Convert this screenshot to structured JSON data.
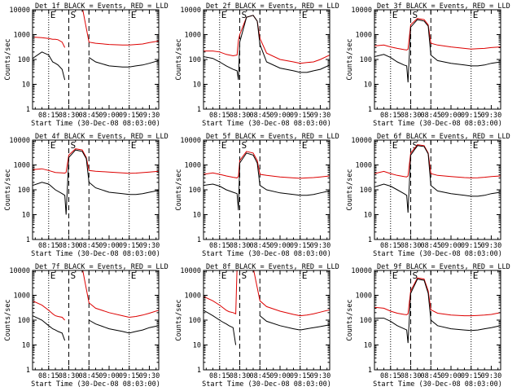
{
  "figure": {
    "xlabel": "Start Time (30-Dec-08 08:03:00)",
    "ylabel": "Counts/sec",
    "x_tick_labels": [
      "08:15",
      "08:30",
      "08:45",
      "09:00",
      "09:15",
      "09:30"
    ],
    "y_tick_labels": [
      "1",
      "10",
      "100",
      "1000",
      "10000"
    ],
    "marker_labels": [
      "E",
      "S",
      "E"
    ],
    "colors": {
      "events": "#000000",
      "lld": "#dd0000",
      "axes": "#000000"
    }
  },
  "chart_data": [
    {
      "type": "line",
      "title": "Det 1f BLACK = Events, RED = LLD",
      "x": [
        "08:03",
        "08:10",
        "08:15",
        "08:18",
        "08:20",
        "08:22",
        "08:25",
        "08:27",
        "08:30",
        "08:31",
        "08:33",
        "08:40",
        "08:45",
        "08:50",
        "09:00",
        "09:10",
        "09:15",
        "09:20",
        "09:25",
        "09:30",
        "09:37"
      ],
      "series": [
        {
          "color": "#dd0000",
          "values": [
            800,
            750,
            700,
            650,
            650,
            620,
            500,
            300,
            null,
            13000,
            13000,
            13000,
            500,
            450,
            400,
            380,
            380,
            400,
            420,
            480,
            550
          ]
        },
        {
          "color": "#000000",
          "values": [
            110,
            200,
            150,
            80,
            70,
            60,
            40,
            15,
            null,
            null,
            null,
            null,
            120,
            80,
            55,
            50,
            50,
            55,
            60,
            70,
            90
          ]
        }
      ],
      "xlim": [
        "08:03",
        "09:37"
      ],
      "ylim": [
        1,
        10000
      ],
      "yscale": "log",
      "dotted_lines": [
        "08:15",
        "09:15"
      ],
      "dashed_lines": [
        "08:30",
        "08:45"
      ],
      "grid": false
    },
    {
      "type": "line",
      "title": "Det 2f BLACK = Events, RED = LLD",
      "x": [
        "08:03",
        "08:10",
        "08:15",
        "08:20",
        "08:25",
        "08:28",
        "08:29",
        "08:30",
        "08:35",
        "08:40",
        "08:43",
        "08:45",
        "08:50",
        "09:00",
        "09:10",
        "09:15",
        "09:20",
        "09:25",
        "09:30",
        "09:37"
      ],
      "series": [
        {
          "color": "#dd0000",
          "values": [
            220,
            220,
            200,
            160,
            140,
            150,
            600,
            1000,
            5000,
            6000,
            3500,
            700,
            180,
            100,
            80,
            70,
            75,
            80,
            100,
            150
          ]
        },
        {
          "color": "#000000",
          "values": [
            130,
            110,
            80,
            55,
            40,
            35,
            15,
            500,
            5000,
            6000,
            3500,
            400,
            80,
            45,
            35,
            30,
            30,
            35,
            40,
            60
          ]
        }
      ],
      "xlim": [
        "08:03",
        "09:37"
      ],
      "ylim": [
        1,
        10000
      ],
      "yscale": "log",
      "dotted_lines": [
        "08:15",
        "09:15"
      ],
      "dashed_lines": [
        "08:30",
        "08:45"
      ],
      "grid": false
    },
    {
      "type": "line",
      "title": "Det 3f BLACK = Events, RED = LLD",
      "x": [
        "08:03",
        "08:10",
        "08:15",
        "08:20",
        "08:25",
        "08:27",
        "08:28",
        "08:30",
        "08:35",
        "08:40",
        "08:43",
        "08:45",
        "08:50",
        "09:00",
        "09:10",
        "09:15",
        "09:20",
        "09:25",
        "09:30",
        "09:37"
      ],
      "series": [
        {
          "color": "#dd0000",
          "values": [
            350,
            380,
            320,
            280,
            250,
            240,
            260,
            2500,
            4500,
            4000,
            2500,
            450,
            380,
            320,
            280,
            260,
            270,
            280,
            300,
            320
          ]
        },
        {
          "color": "#000000",
          "values": [
            130,
            160,
            120,
            80,
            60,
            55,
            12,
            2000,
            4000,
            3500,
            2200,
            150,
            90,
            70,
            60,
            55,
            55,
            60,
            70,
            80
          ]
        }
      ],
      "xlim": [
        "08:03",
        "09:37"
      ],
      "ylim": [
        1,
        10000
      ],
      "yscale": "log",
      "dotted_lines": [
        "08:15",
        "09:15"
      ],
      "dashed_lines": [
        "08:30",
        "08:45"
      ],
      "grid": false
    },
    {
      "type": "line",
      "title": "Det 4f BLACK = Events, RED = LLD",
      "x": [
        "08:03",
        "08:10",
        "08:15",
        "08:20",
        "08:25",
        "08:27",
        "08:28",
        "08:30",
        "08:35",
        "08:40",
        "08:43",
        "08:45",
        "08:50",
        "09:00",
        "09:10",
        "09:15",
        "09:20",
        "09:25",
        "09:30",
        "09:37"
      ],
      "series": [
        {
          "color": "#dd0000",
          "values": [
            650,
            700,
            600,
            500,
            480,
            470,
            500,
            2500,
            4500,
            4000,
            2000,
            600,
            560,
            520,
            480,
            460,
            470,
            490,
            520,
            560
          ]
        },
        {
          "color": "#000000",
          "values": [
            150,
            200,
            170,
            100,
            70,
            60,
            10,
            2000,
            4000,
            3500,
            1800,
            200,
            120,
            80,
            70,
            65,
            65,
            70,
            80,
            95
          ]
        }
      ],
      "xlim": [
        "08:03",
        "09:37"
      ],
      "ylim": [
        1,
        10000
      ],
      "yscale": "log",
      "dotted_lines": [
        "08:15",
        "09:15"
      ],
      "dashed_lines": [
        "08:30",
        "08:45"
      ],
      "grid": false
    },
    {
      "type": "line",
      "title": "Det 5f BLACK = Events, RED = LLD",
      "x": [
        "08:03",
        "08:10",
        "08:15",
        "08:20",
        "08:25",
        "08:28",
        "08:29",
        "08:30",
        "08:35",
        "08:40",
        "08:43",
        "08:45",
        "08:50",
        "09:00",
        "09:10",
        "09:15",
        "09:20",
        "09:25",
        "09:30",
        "09:37"
      ],
      "series": [
        {
          "color": "#dd0000",
          "values": [
            420,
            480,
            420,
            360,
            320,
            300,
            350,
            1500,
            3500,
            3000,
            1500,
            420,
            380,
            330,
            300,
            290,
            300,
            310,
            330,
            360
          ]
        },
        {
          "color": "#000000",
          "values": [
            150,
            170,
            140,
            100,
            80,
            70,
            15,
            1200,
            3000,
            2500,
            1200,
            150,
            100,
            75,
            65,
            60,
            60,
            65,
            75,
            90
          ]
        }
      ],
      "xlim": [
        "08:03",
        "09:37"
      ],
      "ylim": [
        1,
        10000
      ],
      "yscale": "log",
      "dotted_lines": [
        "08:15",
        "09:15"
      ],
      "dashed_lines": [
        "08:30",
        "08:45"
      ],
      "grid": false
    },
    {
      "type": "line",
      "title": "Det 6f BLACK = Events, RED = LLD",
      "x": [
        "08:03",
        "08:10",
        "08:15",
        "08:20",
        "08:25",
        "08:27",
        "08:28",
        "08:30",
        "08:35",
        "08:40",
        "08:43",
        "08:45",
        "08:50",
        "09:00",
        "09:10",
        "09:15",
        "09:20",
        "09:25",
        "09:30",
        "09:37"
      ],
      "series": [
        {
          "color": "#dd0000",
          "values": [
            450,
            550,
            450,
            380,
            340,
            330,
            360,
            3000,
            6500,
            6000,
            3000,
            450,
            380,
            340,
            310,
            300,
            305,
            320,
            340,
            360
          ]
        },
        {
          "color": "#000000",
          "values": [
            130,
            170,
            140,
            100,
            70,
            60,
            12,
            2500,
            6000,
            5500,
            2800,
            150,
            90,
            70,
            60,
            55,
            55,
            60,
            70,
            80
          ]
        }
      ],
      "xlim": [
        "08:03",
        "09:37"
      ],
      "ylim": [
        1,
        10000
      ],
      "yscale": "log",
      "dotted_lines": [
        "08:15",
        "09:15"
      ],
      "dashed_lines": [
        "08:30",
        "08:45"
      ],
      "grid": false
    },
    {
      "type": "line",
      "title": "Det 7f BLACK = Events, RED = LLD",
      "x": [
        "08:03",
        "08:10",
        "08:15",
        "08:18",
        "08:20",
        "08:22",
        "08:25",
        "08:27",
        "08:30",
        "08:31",
        "08:33",
        "08:40",
        "08:45",
        "08:50",
        "09:00",
        "09:10",
        "09:15",
        "09:20",
        "09:25",
        "09:30",
        "09:37"
      ],
      "series": [
        {
          "color": "#dd0000",
          "values": [
            600,
            400,
            250,
            180,
            150,
            140,
            130,
            100,
            null,
            13000,
            13000,
            13000,
            500,
            300,
            200,
            150,
            130,
            140,
            160,
            190,
            250
          ]
        },
        {
          "color": "#000000",
          "values": [
            150,
            100,
            60,
            45,
            40,
            35,
            30,
            15,
            null,
            null,
            null,
            null,
            100,
            70,
            45,
            35,
            30,
            35,
            40,
            50,
            60
          ]
        }
      ],
      "xlim": [
        "08:03",
        "09:37"
      ],
      "ylim": [
        1,
        10000
      ],
      "yscale": "log",
      "dotted_lines": [
        "08:15",
        "09:15"
      ],
      "dashed_lines": [
        "08:30",
        "08:45"
      ],
      "grid": false
    },
    {
      "type": "line",
      "title": "Det 8f BLACK = Events, RED = LLD",
      "x": [
        "08:03",
        "08:10",
        "08:15",
        "08:18",
        "08:20",
        "08:22",
        "08:25",
        "08:27",
        "08:28",
        "08:30",
        "08:35",
        "08:40",
        "08:45",
        "08:50",
        "09:00",
        "09:10",
        "09:15",
        "09:20",
        "09:25",
        "09:30",
        "09:37"
      ],
      "series": [
        {
          "color": "#dd0000",
          "values": [
            900,
            600,
            400,
            300,
            250,
            220,
            200,
            180,
            13000,
            13000,
            13000,
            13000,
            600,
            350,
            230,
            170,
            150,
            160,
            180,
            210,
            260
          ]
        },
        {
          "color": "#000000",
          "values": [
            250,
            150,
            100,
            80,
            70,
            60,
            50,
            10,
            null,
            null,
            null,
            null,
            150,
            90,
            60,
            45,
            40,
            45,
            50,
            55,
            65
          ]
        }
      ],
      "xlim": [
        "08:03",
        "09:37"
      ],
      "ylim": [
        1,
        10000
      ],
      "yscale": "log",
      "dotted_lines": [
        "08:15",
        "09:15"
      ],
      "dashed_lines": [
        "08:30",
        "08:45"
      ],
      "grid": false
    },
    {
      "type": "line",
      "title": "Det 9f BLACK = Events, RED = LLD",
      "x": [
        "08:03",
        "08:10",
        "08:15",
        "08:20",
        "08:25",
        "08:27",
        "08:28",
        "08:30",
        "08:35",
        "08:40",
        "08:43",
        "08:45",
        "08:50",
        "09:00",
        "09:10",
        "09:15",
        "09:20",
        "09:25",
        "09:30",
        "09:37"
      ],
      "series": [
        {
          "color": "#dd0000",
          "values": [
            330,
            300,
            230,
            190,
            170,
            165,
            180,
            1500,
            5000,
            4500,
            1500,
            260,
            190,
            160,
            150,
            150,
            155,
            160,
            170,
            200
          ]
        },
        {
          "color": "#000000",
          "values": [
            120,
            120,
            90,
            60,
            45,
            40,
            12,
            1200,
            4500,
            4000,
            1200,
            100,
            60,
            45,
            40,
            38,
            40,
            45,
            50,
            60
          ]
        }
      ],
      "xlim": [
        "08:03",
        "09:37"
      ],
      "ylim": [
        1,
        10000
      ],
      "yscale": "log",
      "dotted_lines": [
        "08:15",
        "09:15"
      ],
      "dashed_lines": [
        "08:30",
        "08:45"
      ],
      "grid": false
    }
  ]
}
